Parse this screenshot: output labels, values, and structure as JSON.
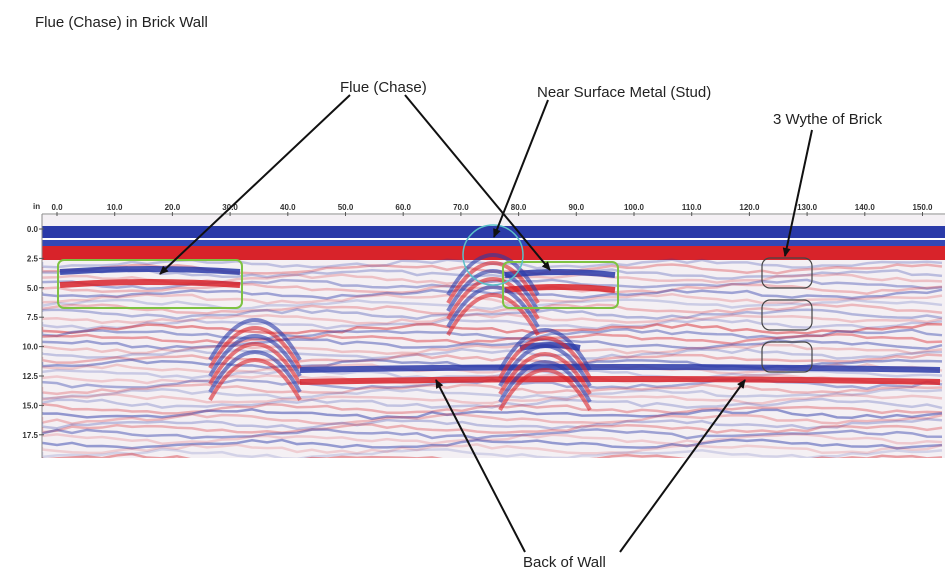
{
  "header": {
    "title": "Flue (Chase) in Brick Wall"
  },
  "annotations": {
    "flue": "Flue (Chase)",
    "metal": "Near Surface Metal (Stud)",
    "wythe": "3 Wythe of Brick",
    "back": "Back of Wall"
  },
  "axes": {
    "x_unit": "in",
    "x_ticks": [
      "0.0",
      "10.0",
      "20.0",
      "30.0",
      "40.0",
      "50.0",
      "60.0",
      "70.0",
      "80.0",
      "90.0",
      "100.0",
      "110.0",
      "120.0",
      "130.0",
      "140.0",
      "150.0"
    ],
    "y_ticks": [
      "0.0",
      "2.5",
      "5.0",
      "7.5",
      "10.0",
      "12.5",
      "15.0",
      "17.5"
    ]
  }
}
